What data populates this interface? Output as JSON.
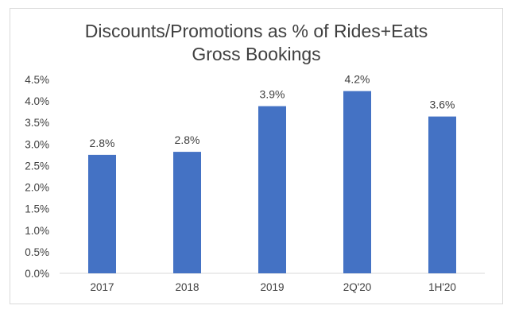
{
  "chart_data": {
    "type": "bar",
    "title_lines": [
      "Discounts/Promotions as % of Rides+Eats",
      "Gross Bookings"
    ],
    "categories": [
      "2017",
      "2018",
      "2019",
      "2Q'20",
      "1H'20"
    ],
    "values": [
      2.75,
      2.82,
      3.88,
      4.23,
      3.64
    ],
    "data_labels": [
      "2.8%",
      "2.8%",
      "3.9%",
      "4.2%",
      "3.6%"
    ],
    "ylim": [
      0,
      4.5
    ],
    "yticks": [
      0,
      0.5,
      1.0,
      1.5,
      2.0,
      2.5,
      3.0,
      3.5,
      4.0,
      4.5
    ],
    "ytick_labels": [
      "0.0%",
      "0.5%",
      "1.0%",
      "1.5%",
      "2.0%",
      "2.5%",
      "3.0%",
      "3.5%",
      "4.0%",
      "4.5%"
    ],
    "xlabel": "",
    "ylabel": "",
    "grid": false,
    "legend": "none",
    "bar_color": "#4472c4"
  }
}
